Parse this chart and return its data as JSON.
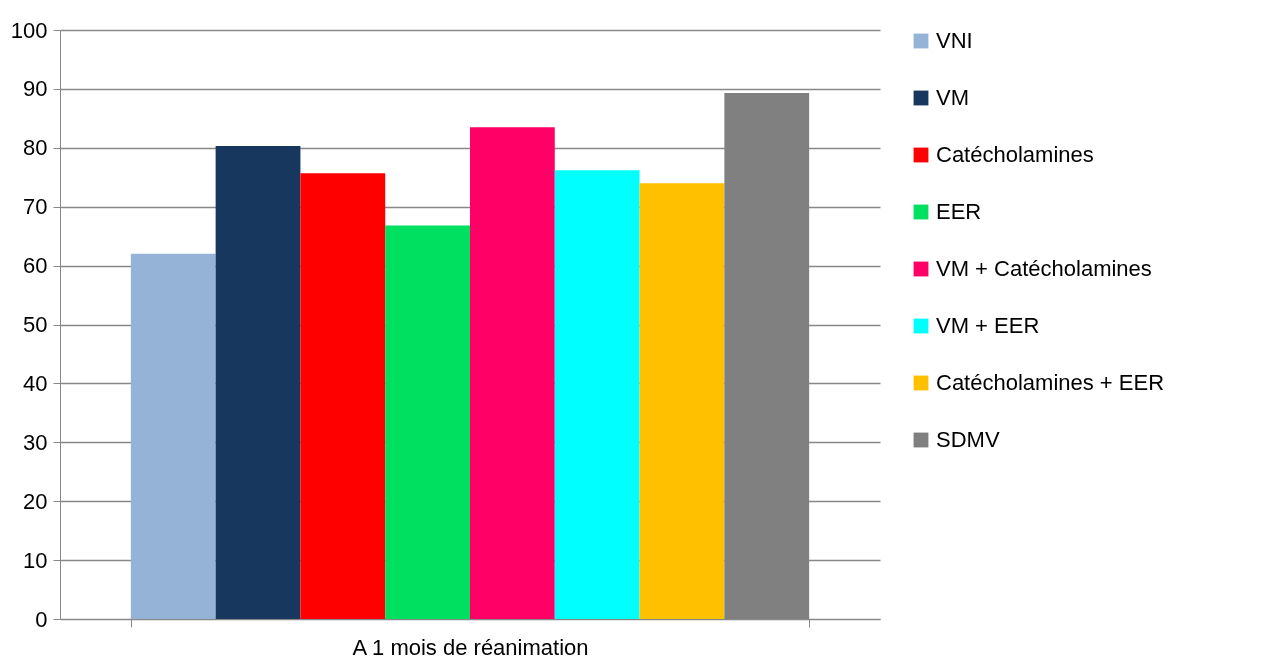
{
  "chart_data": {
    "type": "bar",
    "categories": [
      "A 1 mois de réanimation"
    ],
    "series": [
      {
        "name": "VNI",
        "color": "#95b3d7",
        "values": [
          62
        ]
      },
      {
        "name": "VM",
        "color": "#17375e",
        "values": [
          80.3
        ]
      },
      {
        "name": "Catécholamines",
        "color": "#ff0000",
        "values": [
          75.7
        ]
      },
      {
        "name": "EER",
        "color": "#00e060",
        "values": [
          66.8
        ]
      },
      {
        "name": "VM + Catécholamines",
        "color": "#ff0066",
        "values": [
          83.5
        ]
      },
      {
        "name": "VM + EER",
        "color": "#00ffff",
        "values": [
          76.2
        ]
      },
      {
        "name": "Catécholamines + EER",
        "color": "#ffc000",
        "values": [
          74
        ]
      },
      {
        "name": "SDMV",
        "color": "#808080",
        "values": [
          89.3
        ]
      }
    ],
    "ylim": [
      0,
      100
    ],
    "yticks": [
      0,
      10,
      20,
      30,
      40,
      50,
      60,
      70,
      80,
      90,
      100
    ],
    "grid": "y",
    "legend": "right"
  }
}
